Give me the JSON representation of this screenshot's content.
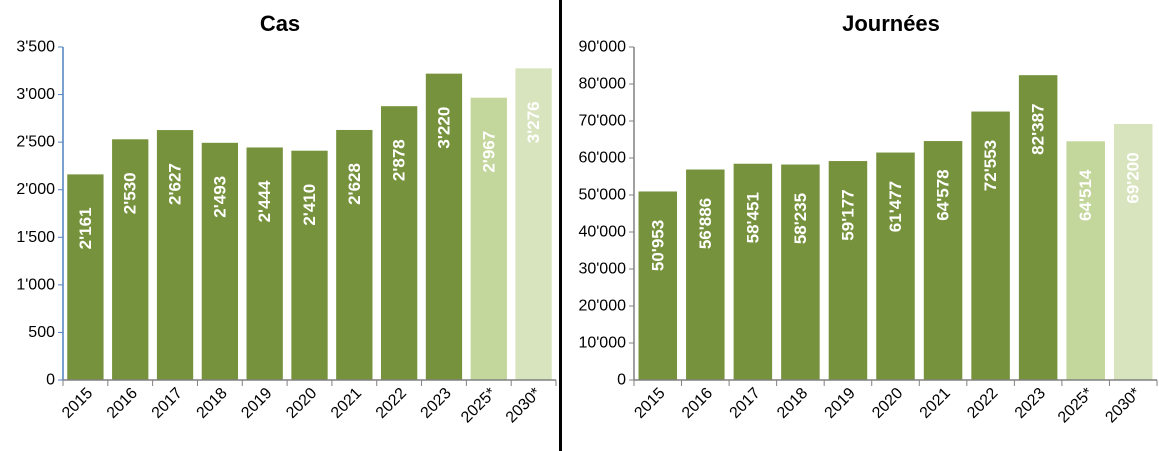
{
  "colors": {
    "actual": "#76923C",
    "forecast_2025": "#C3D69B",
    "forecast_2030": "#D7E4BD",
    "axis_left": "#4F81BD",
    "axis_right": "#808080"
  },
  "chart_data": [
    {
      "type": "bar",
      "title": "Cas",
      "categories": [
        "2015",
        "2016",
        "2017",
        "2018",
        "2019",
        "2020",
        "2021",
        "2022",
        "2023",
        "2025*",
        "2030*"
      ],
      "values": [
        2161,
        2530,
        2627,
        2493,
        2444,
        2410,
        2628,
        2878,
        3220,
        2967,
        3276
      ],
      "data_labels": [
        "2'161",
        "2'530",
        "2'627",
        "2'493",
        "2'444",
        "2'410",
        "2'628",
        "2'878",
        "3'220",
        "2'967",
        "3'276"
      ],
      "ylim": [
        0,
        3500
      ],
      "yticks": [
        0,
        500,
        1000,
        1500,
        2000,
        2500,
        3000,
        3500
      ],
      "ytick_labels": [
        "0",
        "500",
        "1'000",
        "1'500",
        "2'000",
        "2'500",
        "3'000",
        "3'500"
      ],
      "xlabel": "",
      "ylabel": "",
      "grid": false,
      "legend": "none"
    },
    {
      "type": "bar",
      "title": "Journées",
      "categories": [
        "2015",
        "2016",
        "2017",
        "2018",
        "2019",
        "2020",
        "2021",
        "2022",
        "2023",
        "2025*",
        "2030*"
      ],
      "values": [
        50953,
        56886,
        58451,
        58235,
        59177,
        61477,
        64578,
        72553,
        82387,
        64514,
        69200
      ],
      "data_labels": [
        "50'953",
        "56'886",
        "58'451",
        "58'235",
        "59'177",
        "61'477",
        "64'578",
        "72'553",
        "82'387",
        "64'514",
        "69'200"
      ],
      "ylim": [
        0,
        90000
      ],
      "yticks": [
        0,
        10000,
        20000,
        30000,
        40000,
        50000,
        60000,
        70000,
        80000,
        90000
      ],
      "ytick_labels": [
        "0",
        "10'000",
        "20'000",
        "30'000",
        "40'000",
        "50'000",
        "60'000",
        "70'000",
        "80'000",
        "90'000"
      ],
      "xlabel": "",
      "ylabel": "",
      "grid": false,
      "legend": "none"
    }
  ]
}
